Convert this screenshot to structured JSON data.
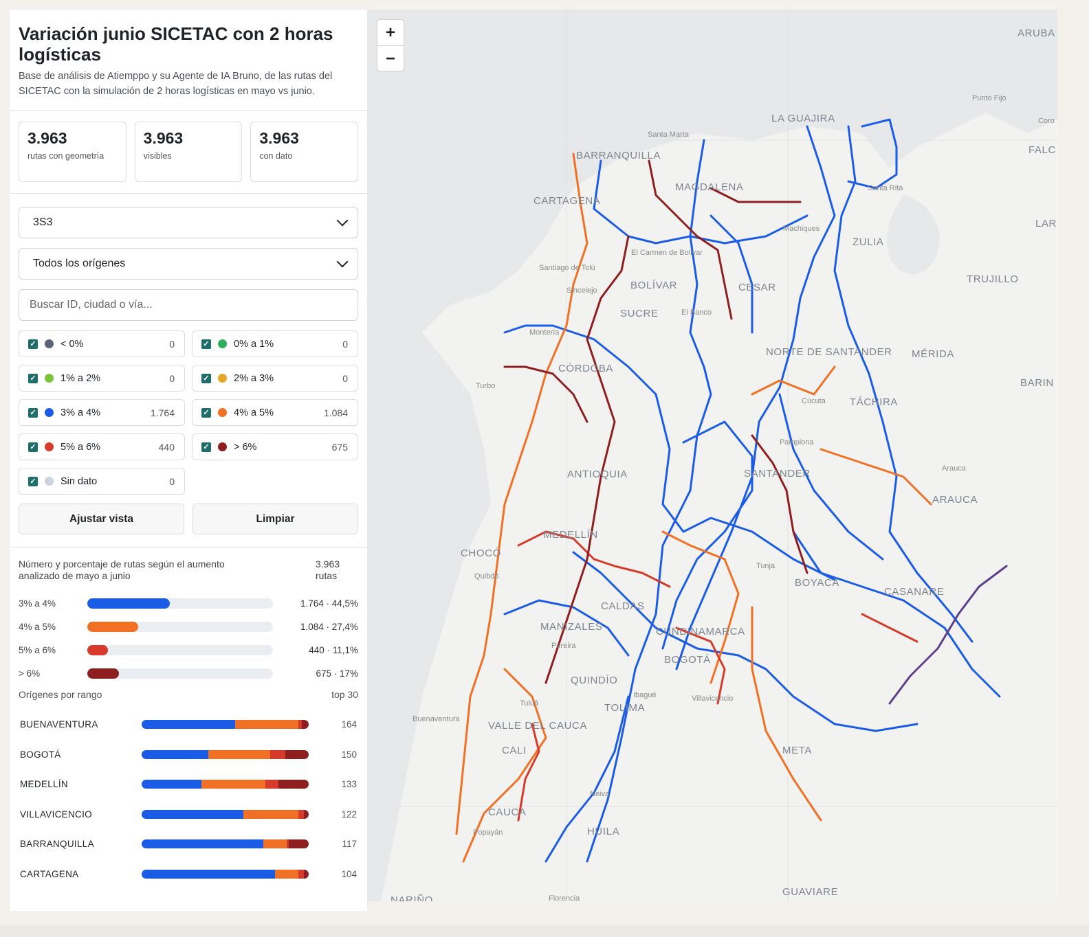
{
  "header": {
    "title": "Variación junio SICETAC con 2 horas logísticas",
    "subtitle": "Base de análisis de Atiemppo y su Agente de IA Bruno, de las rutas del SICETAC con la simulación de 2 horas logísticas en mayo vs junio."
  },
  "stats": [
    {
      "value": "3.963",
      "label": "rutas con geometría"
    },
    {
      "value": "3.963",
      "label": "visibles"
    },
    {
      "value": "3.963",
      "label": "con dato"
    }
  ],
  "filters": {
    "vehicle_select": "3S3",
    "origin_select": "Todos los orígenes",
    "search_placeholder": "Buscar ID, ciudad o vía..."
  },
  "legend": [
    {
      "label": "< 0%",
      "count": "0",
      "color": "#5b6577"
    },
    {
      "label": "0% a 1%",
      "count": "0",
      "color": "#2fb05a"
    },
    {
      "label": "1% a 2%",
      "count": "0",
      "color": "#7cc43a"
    },
    {
      "label": "2% a 3%",
      "count": "0",
      "color": "#e8a628"
    },
    {
      "label": "3% a 4%",
      "count": "1.764",
      "color": "#1a5ce6"
    },
    {
      "label": "4% a 5%",
      "count": "1.084",
      "color": "#f07026"
    },
    {
      "label": "5% a 6%",
      "count": "440",
      "color": "#d63a2a"
    },
    {
      "label": "> 6%",
      "count": "675",
      "color": "#8e1f1f"
    },
    {
      "label": "Sin dato",
      "count": "0",
      "color": "#cdd3dc"
    }
  ],
  "buttons": {
    "fit": "Ajustar vista",
    "clear": "Limpiar"
  },
  "summary": {
    "title": "Número y porcentaje de rutas según el aumento analizado de mayo a junio",
    "total": "3.963 rutas",
    "bars": [
      {
        "label": "3% a 4%",
        "value": "1.764 · 44,5%",
        "fraction": 0.445,
        "color": "#1a5ce6"
      },
      {
        "label": "4% a 5%",
        "value": "1.084 · 27,4%",
        "fraction": 0.274,
        "color": "#f07026"
      },
      {
        "label": "5% a 6%",
        "value": "440 · 11,1%",
        "fraction": 0.111,
        "color": "#d63a2a"
      },
      {
        "label": "> 6%",
        "value": "675 · 17%",
        "fraction": 0.17,
        "color": "#8e1f1f"
      }
    ]
  },
  "origins": {
    "title": "Orígenes por rango",
    "top": "top 30",
    "items": [
      {
        "name": "BUENAVENTURA",
        "count": "164",
        "shares": [
          0.56,
          0.38,
          0.02,
          0.04
        ]
      },
      {
        "name": "BOGOTÁ",
        "count": "150",
        "shares": [
          0.4,
          0.37,
          0.09,
          0.14
        ]
      },
      {
        "name": "MEDELLÍN",
        "count": "133",
        "shares": [
          0.36,
          0.38,
          0.08,
          0.18
        ]
      },
      {
        "name": "VILLAVICENCIO",
        "count": "122",
        "shares": [
          0.61,
          0.33,
          0.03,
          0.03
        ]
      },
      {
        "name": "BARRANQUILLA",
        "count": "117",
        "shares": [
          0.73,
          0.14,
          0.01,
          0.12
        ]
      },
      {
        "name": "CARTAGENA",
        "count": "104",
        "shares": [
          0.8,
          0.14,
          0.03,
          0.03
        ]
      }
    ]
  },
  "map": {
    "zoom_in": "+",
    "zoom_out": "−",
    "labels": [
      "ARUBA",
      "LA GUAJIRA",
      "Santa Marta",
      "BARRANQUILLA",
      "MAGDALENA",
      "CARTAGENA",
      "Machiques",
      "ZULIA",
      "FALC",
      "Coro",
      "Punto Fijo",
      "LAR",
      "Santa Rita",
      "El Carmen de Bolivar",
      "Santiago de Tolú",
      "Sincelejo",
      "BOLÍVAR",
      "CESAR",
      "TRUJILLO",
      "SUCRE",
      "El Banco",
      "Montería",
      "NORTE DE SANTANDER",
      "MÉRIDA",
      "CÓRDOBA",
      "Turbo",
      "BARIN",
      "Cúcuta",
      "TÁCHIRA",
      "Pamplona",
      "Arauca",
      "ANTIOQUIA",
      "SANTANDER",
      "ARAUCA",
      "MEDELLÍN",
      "CHOCÓ",
      "Quibdó",
      "Tunja",
      "BOYACÁ",
      "CASANARE",
      "CALDAS",
      "MANIZALES",
      "CUNDINAMARCA",
      "Pereira",
      "BOGOTÁ",
      "QUINDÍO",
      "Ibagué",
      "Tuluá",
      "TOLIMA",
      "Villavicencio",
      "Buenaventura",
      "VALLE DEL CAUCA",
      "CALI",
      "META",
      "Neiva",
      "CAUCA",
      "Popayán",
      "HUILA",
      "NARIÑO",
      "Florencia",
      "GUAVIARE"
    ]
  }
}
